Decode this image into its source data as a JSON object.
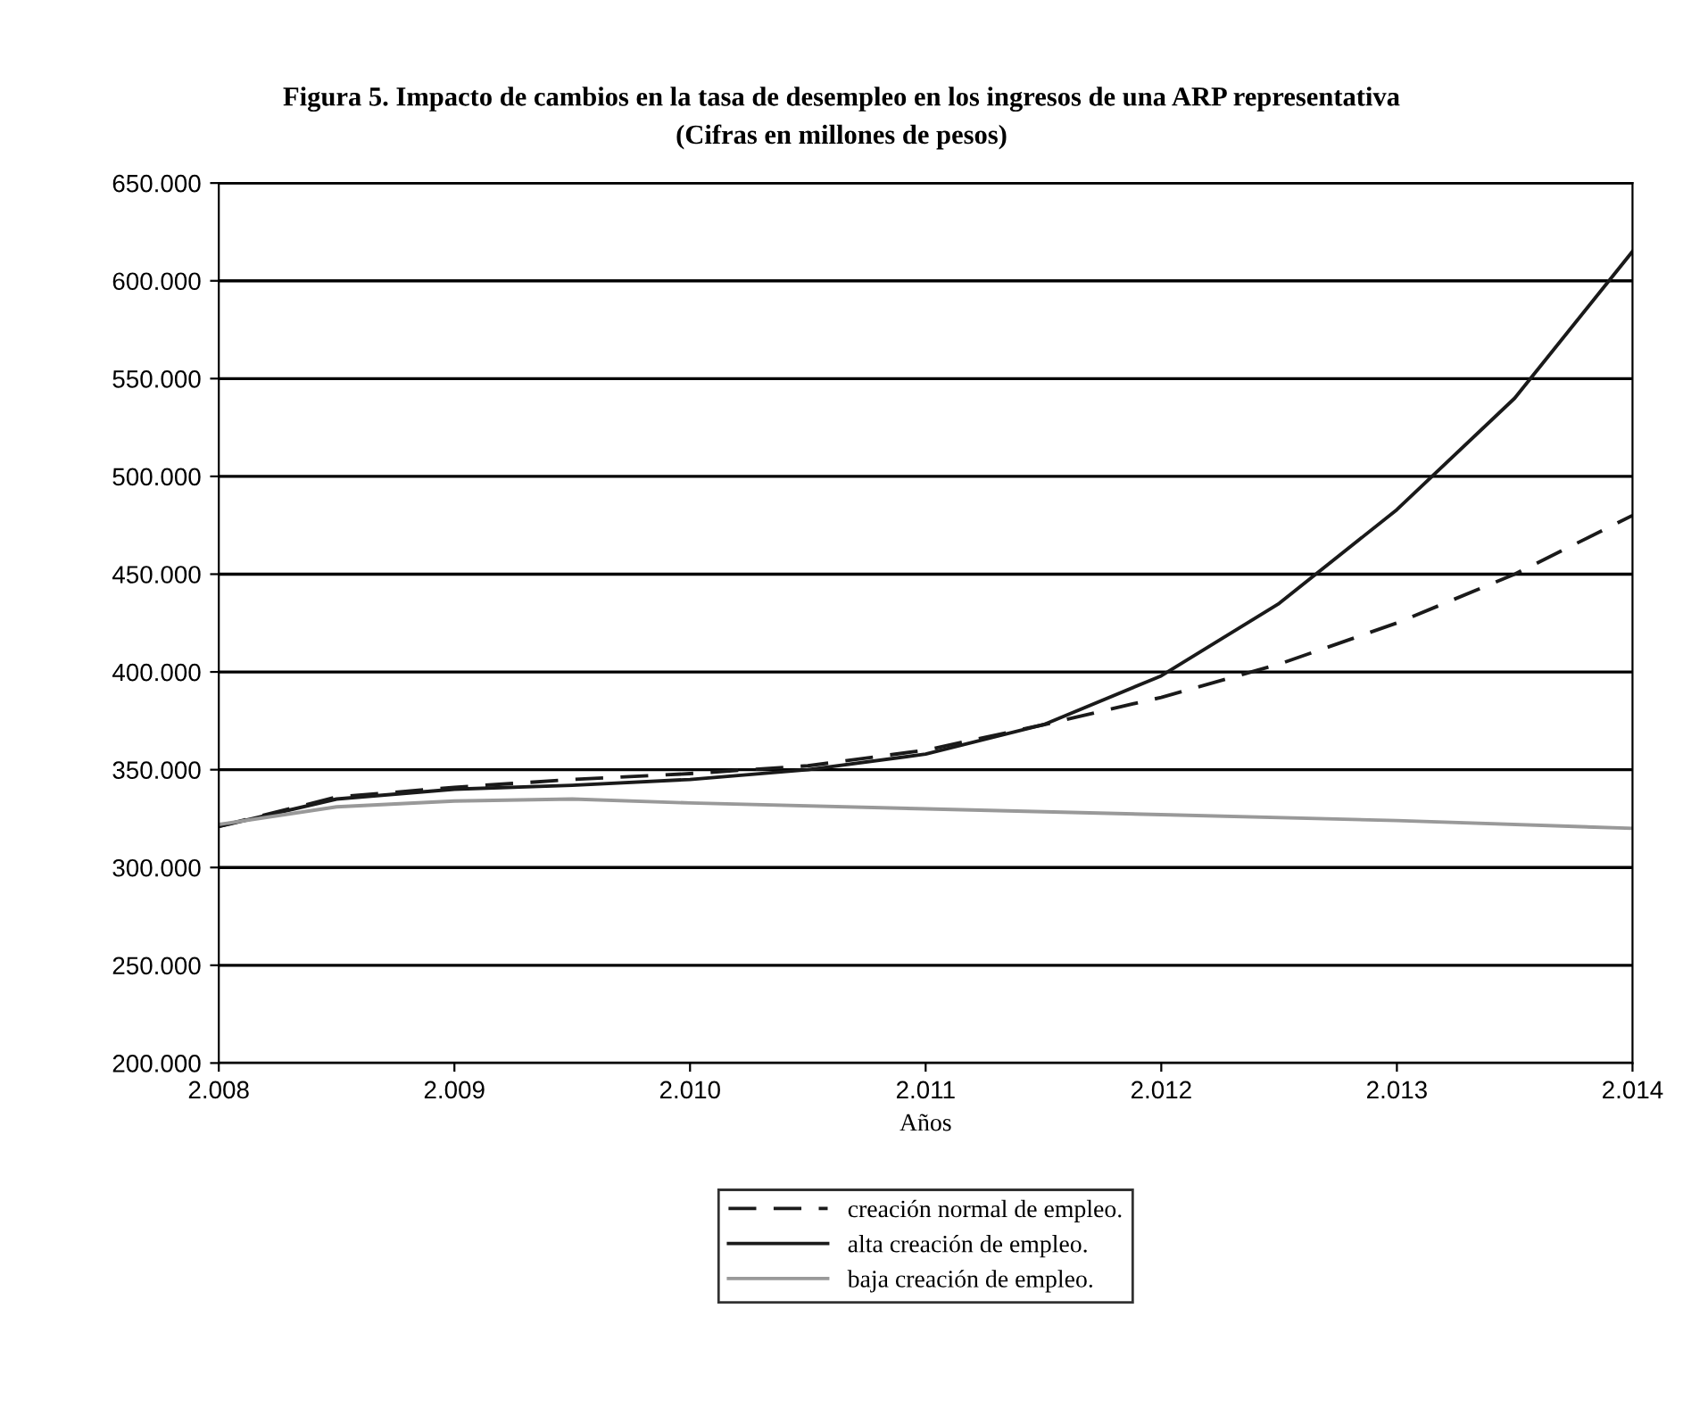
{
  "chart_data": {
    "type": "line",
    "title": "Figura 5. Impacto de cambios en la tasa de desempleo en los ingresos de una ARP representativa",
    "subtitle": "(Cifras en millones de pesos)",
    "xlabel": "Años",
    "series": [
      {
        "name": "creación normal de empleo.",
        "color": "#1a1a1a",
        "line_style": "dashed",
        "x": [
          2008,
          2008.5,
          2009,
          2009.5,
          2010,
          2010.5,
          2011,
          2011.5,
          2012,
          2012.5,
          2013,
          2013.5,
          2014
        ],
        "values": [
          321000,
          336000,
          341000,
          345000,
          348000,
          352000,
          360000,
          373000,
          387000,
          404000,
          425000,
          450000,
          480000
        ]
      },
      {
        "name": "alta creación de empleo.",
        "color": "#1a1a1a",
        "line_style": "solid",
        "x": [
          2008,
          2008.5,
          2009,
          2009.5,
          2010,
          2010.5,
          2011,
          2011.5,
          2012,
          2012.5,
          2013,
          2013.5,
          2014
        ],
        "values": [
          321000,
          335000,
          340000,
          342000,
          345000,
          350000,
          358000,
          373000,
          398000,
          435000,
          483000,
          540000,
          615000
        ]
      },
      {
        "name": "baja creación de empleo.",
        "color": "#999999",
        "line_style": "solid",
        "x": [
          2008,
          2008.5,
          2009,
          2009.5,
          2010,
          2011,
          2012,
          2013,
          2014
        ],
        "values": [
          322000,
          331000,
          334000,
          335000,
          333000,
          330000,
          327000,
          324000,
          320000
        ]
      }
    ],
    "xlim": [
      2008,
      2014
    ],
    "xticks": [
      {
        "value": 2008,
        "label": "2.008"
      },
      {
        "value": 2009,
        "label": "2.009"
      },
      {
        "value": 2010,
        "label": "2.010"
      },
      {
        "value": 2011,
        "label": "2.011"
      },
      {
        "value": 2012,
        "label": "2.012"
      },
      {
        "value": 2013,
        "label": "2.013"
      },
      {
        "value": 2014,
        "label": "2.014"
      }
    ],
    "ylim": [
      200000,
      650000
    ],
    "yticks": [
      {
        "value": 200000,
        "label": "200.000"
      },
      {
        "value": 250000,
        "label": "250.000"
      },
      {
        "value": 300000,
        "label": "300.000"
      },
      {
        "value": 350000,
        "label": "350.000"
      },
      {
        "value": 400000,
        "label": "400.000"
      },
      {
        "value": 450000,
        "label": "450.000"
      },
      {
        "value": 500000,
        "label": "500.000"
      },
      {
        "value": 550000,
        "label": "550.000"
      },
      {
        "value": 600000,
        "label": "600.000"
      },
      {
        "value": 650000,
        "label": "650.000"
      }
    ],
    "grid": "y",
    "legend": "bottom"
  }
}
